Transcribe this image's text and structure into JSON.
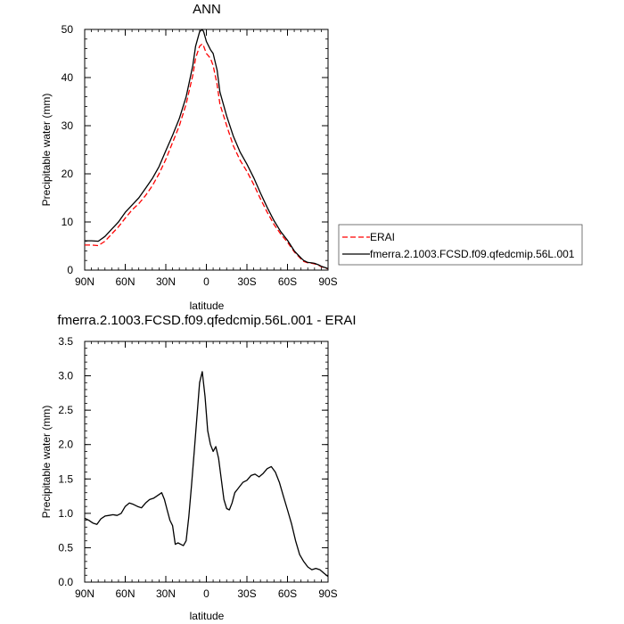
{
  "chart_data": [
    {
      "type": "line",
      "title": "ANN",
      "xlabel": "latitude",
      "ylabel": "Precipitable water (mm)",
      "xlim": [
        90,
        -90
      ],
      "ylim": [
        0,
        50
      ],
      "x_tick_values": [
        90,
        60,
        30,
        0,
        -30,
        -60,
        -90
      ],
      "x_tick_labels": [
        "90N",
        "60N",
        "30N",
        "0",
        "30S",
        "60S",
        "90S"
      ],
      "y_ticks": [
        0,
        10,
        20,
        30,
        40,
        50
      ],
      "grid": false,
      "legend_position": "right",
      "series": [
        {
          "name": "ERAI",
          "color": "#ff0000",
          "dash": "dashed",
          "x": [
            90,
            85,
            80,
            75,
            70,
            65,
            60,
            55,
            50,
            45,
            40,
            35,
            30,
            25,
            20,
            15,
            10,
            8,
            5,
            3,
            2,
            0,
            -3,
            -5,
            -8,
            -10,
            -15,
            -20,
            -25,
            -30,
            -35,
            -40,
            -45,
            -50,
            -55,
            -60,
            -65,
            -70,
            -72,
            -75,
            -78,
            -80,
            -83,
            -85,
            -88,
            -90
          ],
          "values": [
            5.2,
            5.2,
            5.1,
            6.0,
            7.5,
            9.0,
            10.8,
            12.5,
            13.8,
            15.5,
            17.5,
            20.0,
            23.0,
            26.5,
            30.0,
            34.5,
            40.5,
            44.0,
            46.5,
            47.0,
            46.5,
            45.0,
            44.0,
            42.5,
            38.5,
            34.5,
            30.0,
            25.8,
            22.8,
            20.5,
            17.8,
            14.8,
            12.0,
            9.5,
            7.5,
            5.8,
            3.8,
            2.3,
            1.8,
            1.5,
            1.4,
            1.3,
            1.0,
            0.7,
            0.4,
            0.3
          ]
        },
        {
          "name": "fmerra.2.1003.FCSD.f09.qfedcmip.56L.001",
          "color": "#000000",
          "dash": "solid",
          "x": [
            90,
            85,
            80,
            75,
            70,
            65,
            60,
            55,
            50,
            45,
            40,
            35,
            30,
            25,
            20,
            15,
            10,
            8,
            5,
            3,
            2,
            0,
            -3,
            -5,
            -8,
            -10,
            -15,
            -20,
            -25,
            -30,
            -35,
            -40,
            -45,
            -50,
            -55,
            -60,
            -65,
            -70,
            -72,
            -75,
            -78,
            -80,
            -83,
            -85,
            -88,
            -90
          ],
          "values": [
            6.1,
            6.1,
            6.0,
            7.0,
            8.5,
            10.0,
            12.0,
            13.5,
            15.0,
            17.0,
            19.0,
            21.5,
            24.8,
            28.0,
            31.5,
            36.0,
            42.5,
            46.5,
            49.5,
            50.0,
            49.5,
            47.5,
            45.8,
            45.0,
            41.5,
            37.0,
            32.0,
            27.8,
            24.5,
            22.0,
            19.2,
            16.0,
            13.0,
            10.3,
            8.0,
            6.2,
            4.0,
            2.5,
            2.0,
            1.6,
            1.5,
            1.4,
            1.1,
            0.8,
            0.5,
            0.3
          ]
        }
      ]
    },
    {
      "type": "line",
      "title": "fmerra.2.1003.FCSD.f09.qfedcmip.56L.001 - ERAI",
      "xlabel": "latitude",
      "ylabel": "Precipitable water (mm)",
      "xlim": [
        90,
        -90
      ],
      "ylim": [
        0,
        3.5
      ],
      "x_tick_values": [
        90,
        60,
        30,
        0,
        -30,
        -60,
        -90
      ],
      "x_tick_labels": [
        "90N",
        "60N",
        "30N",
        "0",
        "30S",
        "60S",
        "90S"
      ],
      "y_ticks": [
        0.0,
        0.5,
        1.0,
        1.5,
        2.0,
        2.5,
        3.0,
        3.5
      ],
      "grid": false,
      "series": [
        {
          "color": "#000000",
          "dash": "solid",
          "x": [
            90,
            87,
            84,
            81,
            78,
            75,
            72,
            69,
            66,
            63,
            60,
            57,
            54,
            51,
            48,
            45,
            42,
            39,
            36,
            33,
            31,
            29,
            27,
            25,
            23,
            21,
            19,
            17,
            15,
            13,
            11,
            9,
            7,
            5,
            3,
            1,
            -1,
            -3,
            -5,
            -7,
            -9,
            -11,
            -13,
            -15,
            -17,
            -19,
            -21,
            -23,
            -25,
            -27,
            -30,
            -33,
            -36,
            -39,
            -42,
            -45,
            -48,
            -51,
            -54,
            -57,
            -60,
            -63,
            -66,
            -69,
            -72,
            -75,
            -78,
            -81,
            -84,
            -87,
            -90
          ],
          "values": [
            0.93,
            0.9,
            0.86,
            0.84,
            0.92,
            0.96,
            0.97,
            0.98,
            0.97,
            1.0,
            1.1,
            1.15,
            1.13,
            1.1,
            1.08,
            1.15,
            1.2,
            1.22,
            1.26,
            1.3,
            1.2,
            1.05,
            0.9,
            0.82,
            0.55,
            0.57,
            0.55,
            0.53,
            0.6,
            0.95,
            1.4,
            1.9,
            2.4,
            2.9,
            3.06,
            2.7,
            2.2,
            2.0,
            1.9,
            1.97,
            1.8,
            1.5,
            1.2,
            1.07,
            1.05,
            1.15,
            1.3,
            1.35,
            1.4,
            1.45,
            1.48,
            1.55,
            1.57,
            1.53,
            1.58,
            1.65,
            1.68,
            1.6,
            1.45,
            1.25,
            1.05,
            0.85,
            0.6,
            0.4,
            0.3,
            0.22,
            0.18,
            0.2,
            0.18,
            0.13,
            0.08
          ]
        }
      ]
    }
  ]
}
